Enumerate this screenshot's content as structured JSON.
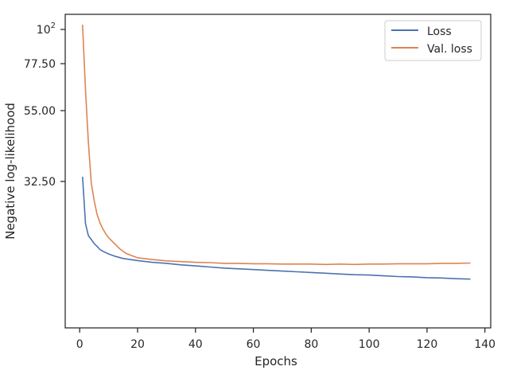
{
  "chart_data": {
    "type": "line",
    "xlabel": "Epochs",
    "ylabel": "Negative log-likelihood",
    "xlim": [
      -5,
      142
    ],
    "ylim": [
      0,
      104
    ],
    "x_ticks": [
      0,
      20,
      40,
      60,
      80,
      100,
      120,
      140
    ],
    "x_tick_labels": [
      "0",
      "20",
      "40",
      "60",
      "80",
      "100",
      "120",
      "140"
    ],
    "y_ticks": [
      32.5,
      55,
      77.5,
      100
    ],
    "y_tick_labels": [
      "32.50",
      "55.00",
      "77.50",
      "10²"
    ],
    "y_scale_note": "nonlinear (log-like) scale",
    "grid": false,
    "legend_position": "top-right",
    "legend": [
      "Loss",
      "Val. loss"
    ],
    "series": [
      {
        "name": "Loss",
        "color": "#4c72b0",
        "x": [
          1,
          2,
          3,
          4,
          5,
          6,
          7,
          8,
          10,
          12,
          15,
          20,
          25,
          30,
          35,
          40,
          45,
          50,
          55,
          60,
          65,
          70,
          75,
          80,
          85,
          90,
          95,
          100,
          105,
          110,
          115,
          120,
          125,
          130,
          135
        ],
        "y": [
          34,
          20.3,
          16.8,
          15.7,
          14.5,
          13.7,
          12.8,
          12.3,
          11.5,
          10.9,
          10.2,
          9.6,
          9.1,
          8.8,
          8.4,
          8.1,
          7.8,
          7.5,
          7.3,
          7.1,
          6.9,
          6.7,
          6.5,
          6.3,
          6.1,
          5.9,
          5.7,
          5.6,
          5.4,
          5.2,
          5.1,
          4.9,
          4.8,
          4.6,
          4.5
        ]
      },
      {
        "name": "Val. loss",
        "color": "#dd8452",
        "x": [
          1,
          2,
          3,
          4,
          5,
          6,
          7,
          8,
          9,
          10,
          12,
          14,
          16,
          18,
          20,
          25,
          30,
          35,
          40,
          45,
          50,
          55,
          60,
          65,
          70,
          75,
          80,
          85,
          90,
          95,
          100,
          105,
          110,
          115,
          120,
          125,
          130,
          135
        ],
        "y": [
          102,
          65,
          45,
          32,
          27,
          23,
          20.5,
          18.8,
          17.3,
          16.2,
          14.5,
          12.9,
          11.7,
          11.0,
          10.4,
          9.9,
          9.5,
          9.3,
          9.1,
          9.0,
          8.8,
          8.8,
          8.7,
          8.7,
          8.6,
          8.6,
          8.6,
          8.5,
          8.6,
          8.5,
          8.6,
          8.6,
          8.7,
          8.7,
          8.7,
          8.8,
          8.8,
          8.9
        ]
      }
    ]
  }
}
